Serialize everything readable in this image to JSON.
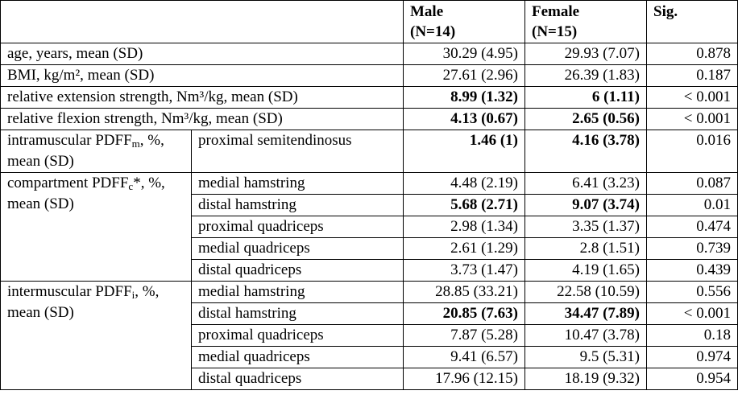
{
  "header": {
    "male": [
      "Male",
      "(N=14)"
    ],
    "female": [
      "Female",
      "(N=15)"
    ],
    "sig": "Sig."
  },
  "rows": [
    {
      "label": "age, years, mean (SD)",
      "male": "30.29 (4.95)",
      "female": "29.93 (7.07)",
      "sig": "0.878"
    },
    {
      "label": "BMI, kg/m², mean (SD)",
      "male": "27.61 (2.96)",
      "female": "26.39 (1.83)",
      "sig": "0.187"
    },
    {
      "label": "relative extension strength, Nm³/kg, mean (SD)",
      "male": "8.99 (1.32)",
      "female": "6 (1.11)",
      "sig": "< 0.001",
      "bold": true
    },
    {
      "label": "relative flexion strength, Nm³/kg, mean (SD)",
      "male": "4.13 (0.67)",
      "female": "2.65 (0.56)",
      "sig": "< 0.001",
      "bold": true
    }
  ],
  "groups": [
    {
      "label": [
        "intramuscular PDFF",
        "m",
        ", %, mean (SD)"
      ],
      "rows": [
        {
          "sub": "proximal semitendinosus",
          "male": "1.46 (1)",
          "female": "4.16 (3.78)",
          "sig": "0.016",
          "bold": true
        }
      ]
    },
    {
      "label": [
        "compartment PDFF",
        "c",
        "*, %, mean (SD)"
      ],
      "rows": [
        {
          "sub": "medial hamstring",
          "male": "4.48 (2.19)",
          "female": "6.41 (3.23)",
          "sig": "0.087"
        },
        {
          "sub": "distal hamstring",
          "male": "5.68 (2.71)",
          "female": "9.07 (3.74)",
          "sig": "0.01",
          "bold": true
        },
        {
          "sub": "proximal quadriceps",
          "male": "2.98 (1.34)",
          "female": "3.35 (1.37)",
          "sig": "0.474"
        },
        {
          "sub": "medial quadriceps",
          "male": "2.61 (1.29)",
          "female": "2.8 (1.51)",
          "sig": "0.739"
        },
        {
          "sub": "distal quadriceps",
          "male": "3.73 (1.47)",
          "female": "4.19 (1.65)",
          "sig": "0.439"
        }
      ]
    },
    {
      "label": [
        "intermuscular PDFF",
        "i",
        ", %, mean (SD)"
      ],
      "rows": [
        {
          "sub": "medial hamstring",
          "male": "28.85 (33.21)",
          "female": "22.58 (10.59)",
          "sig": "0.556"
        },
        {
          "sub": "distal hamstring",
          "male": "20.85 (7.63)",
          "female": "34.47 (7.89)",
          "sig": "< 0.001",
          "bold": true
        },
        {
          "sub": "proximal quadriceps",
          "male": "7.87 (5.28)",
          "female": "10.47 (3.78)",
          "sig": "0.18"
        },
        {
          "sub": "medial quadriceps",
          "male": "9.41 (6.57)",
          "female": "9.5 (5.31)",
          "sig": "0.974"
        },
        {
          "sub": "distal quadriceps",
          "male": "17.96 (12.15)",
          "female": "18.19 (9.32)",
          "sig": "0.954"
        }
      ]
    }
  ]
}
